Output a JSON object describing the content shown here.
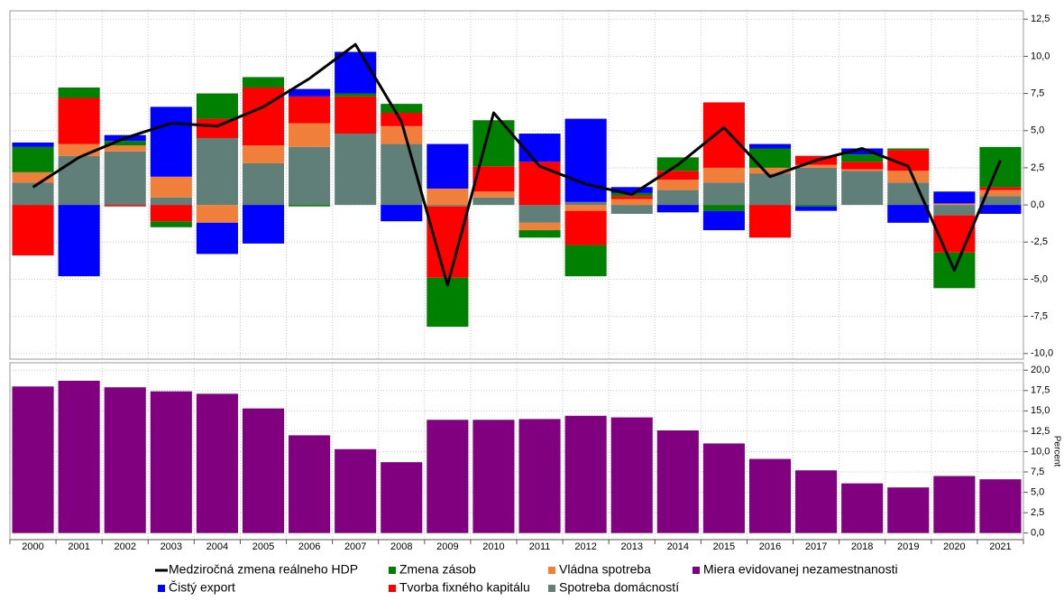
{
  "chart_data": [
    {
      "type": "bar",
      "stacked": true,
      "ylim": [
        -10.5,
        13
      ],
      "yticks": [
        {
          "value": 12.5,
          "label": "12,5"
        },
        {
          "value": 10,
          "label": "10,0"
        },
        {
          "value": 7.5,
          "label": "7,5"
        },
        {
          "value": 5,
          "label": "5,0"
        },
        {
          "value": 2.5,
          "label": "2,5"
        },
        {
          "value": 0,
          "label": "0,0"
        },
        {
          "value": -2.5,
          "label": "-2,5"
        },
        {
          "value": -5,
          "label": "-5,0"
        },
        {
          "value": -7.5,
          "label": "-7,5"
        },
        {
          "value": -10,
          "label": "-10,0"
        }
      ],
      "grid": true,
      "series": [
        {
          "name": "Spotreba domácností",
          "color": "#5f7f78",
          "values": [
            1.5,
            3.3,
            3.6,
            0.5,
            4.5,
            2.8,
            3.9,
            4.8,
            4.1,
            -0.1,
            0.5,
            -1.2,
            0.2,
            -0.6,
            1.0,
            1.5,
            2.1,
            2.5,
            2.3,
            1.5,
            -0.7,
            0.6
          ]
        },
        {
          "name": "Vládna spotreba",
          "color": "#f07f3c",
          "values": [
            0.7,
            0.8,
            0.4,
            1.4,
            -1.2,
            1.2,
            1.6,
            0.0,
            1.2,
            1.1,
            0.4,
            -0.5,
            -0.4,
            0.4,
            0.7,
            1.0,
            0.4,
            0.2,
            0.1,
            0.8,
            0.1,
            0.4
          ]
        },
        {
          "name": "Tvorba fixného kapitálu",
          "color": "#ff0000",
          "values": [
            -3.4,
            3.1,
            -0.1,
            -1.1,
            1.3,
            3.9,
            1.8,
            2.5,
            0.9,
            -4.8,
            1.7,
            2.9,
            -2.3,
            0.2,
            0.6,
            4.4,
            -2.2,
            0.6,
            0.5,
            1.4,
            -2.5,
            0.2
          ]
        },
        {
          "name": "Zmena zásob",
          "color": "#008000",
          "values": [
            1.7,
            0.7,
            0.3,
            -0.4,
            1.7,
            0.7,
            -0.1,
            0.2,
            0.6,
            -3.3,
            3.1,
            -0.5,
            -2.1,
            0.2,
            0.9,
            -0.4,
            1.3,
            -0.1,
            0.5,
            0.1,
            -2.4,
            2.7
          ]
        },
        {
          "name": "Čistý export",
          "color": "#0000ff",
          "values": [
            0.3,
            -4.8,
            0.4,
            4.7,
            -2.1,
            -2.6,
            0.5,
            2.8,
            -1.1,
            3.0,
            0.0,
            1.9,
            5.6,
            0.4,
            -0.5,
            -1.3,
            0.3,
            -0.3,
            0.4,
            -1.2,
            0.8,
            -0.6
          ]
        },
        {
          "name": "Medziročná zmena reálneho HDP",
          "color": "#000000",
          "type": "line",
          "values": [
            1.2,
            3.2,
            4.5,
            5.5,
            5.3,
            6.6,
            8.5,
            10.8,
            5.6,
            -5.4,
            6.2,
            2.6,
            1.4,
            0.7,
            2.7,
            5.2,
            1.9,
            3.0,
            3.8,
            2.6,
            -4.4,
            3.0
          ]
        }
      ]
    },
    {
      "type": "bar",
      "categories": [
        "2000",
        "2001",
        "2002",
        "2003",
        "2004",
        "2005",
        "2006",
        "2007",
        "2008",
        "2009",
        "2010",
        "2011",
        "2012",
        "2013",
        "2014",
        "2015",
        "2016",
        "2017",
        "2018",
        "2019",
        "2020",
        "2021"
      ],
      "ylabel": "Percent",
      "ylim": [
        -0.7,
        20.8
      ],
      "yticks": [
        {
          "value": 20,
          "label": "20,0"
        },
        {
          "value": 17.5,
          "label": "17,5"
        },
        {
          "value": 15,
          "label": "15,0"
        },
        {
          "value": 12.5,
          "label": "12,5"
        },
        {
          "value": 10,
          "label": "10,0"
        },
        {
          "value": 7.5,
          "label": "7,5"
        },
        {
          "value": 5,
          "label": "5,0"
        },
        {
          "value": 2.5,
          "label": "2,5"
        },
        {
          "value": 0,
          "label": "0,0"
        }
      ],
      "grid": true,
      "series": [
        {
          "name": "Miera evidovanej nezamestnanosti",
          "color": "#800080",
          "values": [
            18.0,
            18.7,
            17.9,
            17.4,
            17.1,
            15.3,
            12.0,
            10.3,
            8.7,
            13.9,
            13.9,
            14.0,
            14.4,
            14.2,
            12.6,
            11.0,
            9.1,
            7.7,
            6.1,
            5.6,
            7.0,
            6.6
          ]
        }
      ]
    }
  ]
}
